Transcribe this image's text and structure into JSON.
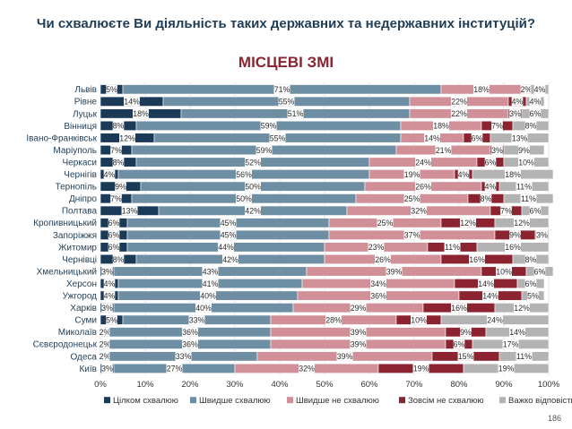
{
  "question": "Чи схвалюєте Ви діяльність таких державних та недержавних інституцій?",
  "page_number": "186",
  "chart_data": {
    "type": "bar",
    "orientation": "horizontal",
    "stacked": true,
    "title": "МІСЦЕВІ ЗМІ",
    "xlim": [
      0,
      100
    ],
    "x_ticks": [
      "0%",
      "10%",
      "20%",
      "30%",
      "40%",
      "50%",
      "60%",
      "70%",
      "80%",
      "90%",
      "100%"
    ],
    "grid": true,
    "legend_position": "bottom",
    "categories": [
      "Львів",
      "Рівне",
      "Луцьк",
      "Вінниця",
      "Івано-Франківськ",
      "Маріуполь",
      "Черкаси",
      "Чернігів",
      "Тернопіль",
      "Дніпро",
      "Полтава",
      "Кропивницький",
      "Запоріжжя",
      "Житомир",
      "Чернівці",
      "Хмельницький",
      "Херсон",
      "Ужгород",
      "Харків",
      "Суми",
      "Миколаїв",
      "Сєвєродонецьк",
      "Одеса",
      "Київ"
    ],
    "series": [
      {
        "name": "Цілком схвалюю",
        "color": "#1b3a57",
        "label_color": "#ffffff",
        "values": [
          5,
          14,
          18,
          8,
          12,
          7,
          8,
          4,
          9,
          7,
          13,
          6,
          6,
          6,
          8,
          3,
          4,
          4,
          3,
          5,
          2,
          2,
          2,
          3
        ]
      },
      {
        "name": "Швидше схвалюю",
        "color": "#6e8fa3",
        "label_color": "#ffffff",
        "values": [
          71,
          55,
          51,
          59,
          55,
          59,
          52,
          56,
          50,
          50,
          42,
          45,
          45,
          44,
          42,
          43,
          41,
          40,
          40,
          33,
          36,
          36,
          33,
          27
        ]
      },
      {
        "name": "Швидше не схвалюю",
        "color": "#d18f97",
        "label_color": "#ffffff",
        "values": [
          18,
          22,
          22,
          18,
          14,
          21,
          24,
          19,
          26,
          25,
          32,
          25,
          37,
          23,
          26,
          39,
          34,
          36,
          29,
          28,
          39,
          39,
          39,
          32
        ]
      },
      {
        "name": "Зовсім не схвалюю",
        "color": "#8b2430",
        "label_color": "#ffffff",
        "values": [
          2,
          4,
          3,
          7,
          6,
          3,
          6,
          4,
          4,
          8,
          7,
          12,
          9,
          11,
          16,
          10,
          14,
          14,
          16,
          10,
          9,
          6,
          15,
          19
        ]
      },
      {
        "name": "Важко відповісти",
        "color": "#b3b3b3",
        "label_color": "#ffffff",
        "values": [
          4,
          4,
          6,
          8,
          13,
          9,
          10,
          18,
          11,
          11,
          6,
          12,
          3,
          16,
          8,
          6,
          6,
          5,
          12,
          24,
          14,
          17,
          11,
          19
        ]
      }
    ]
  }
}
